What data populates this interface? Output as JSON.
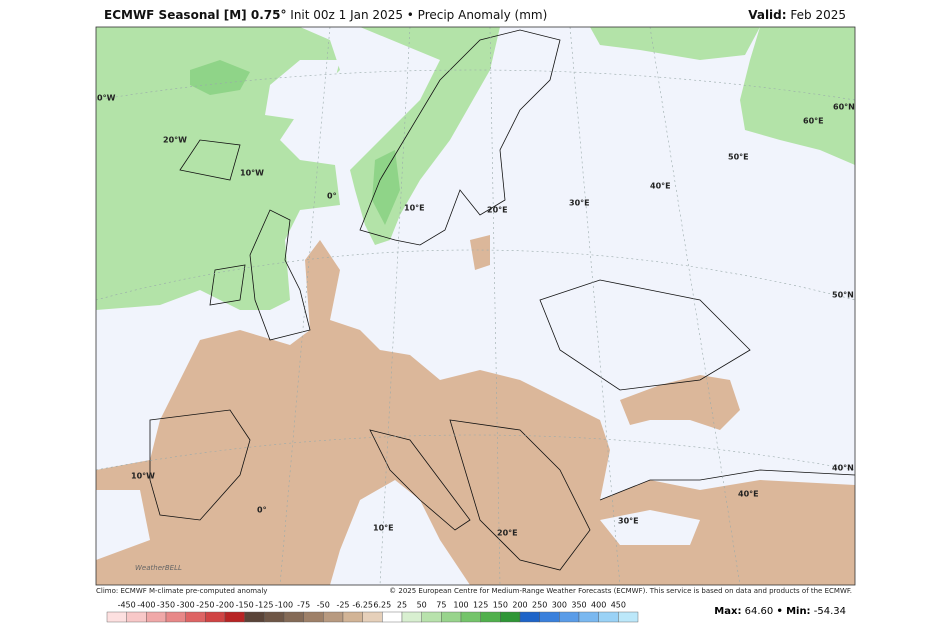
{
  "header": {
    "title_bold": "ECMWF Seasonal [M] 0.75°",
    "title_rest": "Init 00z 1 Jan 2025 • Precip Anomaly (mm)",
    "valid_label": "Valid:",
    "valid_value": "Feb 2025"
  },
  "map": {
    "labels": [
      "0°W",
      "20°W",
      "10°W",
      "0°",
      "10°E",
      "20°E",
      "30°E",
      "40°E",
      "50°E",
      "60°E",
      "60°N",
      "50°N",
      "40°N",
      "10°W",
      "0°",
      "10°E",
      "20°E",
      "30°E",
      "40°E"
    ]
  },
  "logo": "WeatherBELL",
  "footer": {
    "climo": "Climo: ECMWF M-climate pre-computed anomaly",
    "copyright": "© 2025 European Centre for Medium-Range Weather Forecasts (ECMWF). This service is based on data and products of the ECMWF."
  },
  "colorbar": {
    "labels": [
      "-450",
      "-400",
      "-350",
      "-300",
      "-250",
      "-200",
      "-150",
      "-125",
      "-100",
      "-75",
      "-50",
      "-25",
      "-6.25",
      "6.25",
      "25",
      "50",
      "75",
      "100",
      "125",
      "150",
      "200",
      "250",
      "300",
      "350",
      "400",
      "450"
    ]
  },
  "stats": {
    "max_label": "Max:",
    "max_value": "64.60",
    "separator": "•",
    "min_label": "Min:",
    "min_value": "-54.34"
  }
}
